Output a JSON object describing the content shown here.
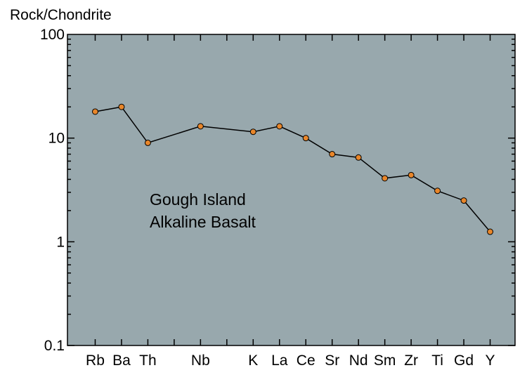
{
  "chart_data": {
    "type": "line",
    "y_scale": "log",
    "ylim": [
      0.1,
      100
    ],
    "ylabel": "Rock/Chondrite",
    "xlabel": "",
    "title": "",
    "y_tick_labels": [
      "100",
      "10",
      "1",
      "0.1"
    ],
    "annotation": [
      "Gough Island",
      "Alkaline Basalt"
    ],
    "categories": [
      "Rb",
      "Ba",
      "Th",
      "Nb",
      "K",
      "La",
      "Ce",
      "Sr",
      "Nd",
      "Sm",
      "Zr",
      "Ti",
      "Gd",
      "Y"
    ],
    "category_slots": [
      1,
      2,
      3,
      5,
      7,
      8,
      9,
      10,
      11,
      12,
      13,
      14,
      15,
      16
    ],
    "slot_count": 16,
    "series": [
      {
        "values": [
          18,
          20,
          9,
          13,
          11.5,
          13,
          10,
          7,
          6.5,
          4.1,
          4.4,
          3.1,
          2.5,
          1.25
        ]
      }
    ],
    "grid": false,
    "colors": {
      "background": "#98a8ad",
      "marker_fill": "#e8862a",
      "marker_stroke": "#000000",
      "line": "#000000"
    }
  }
}
